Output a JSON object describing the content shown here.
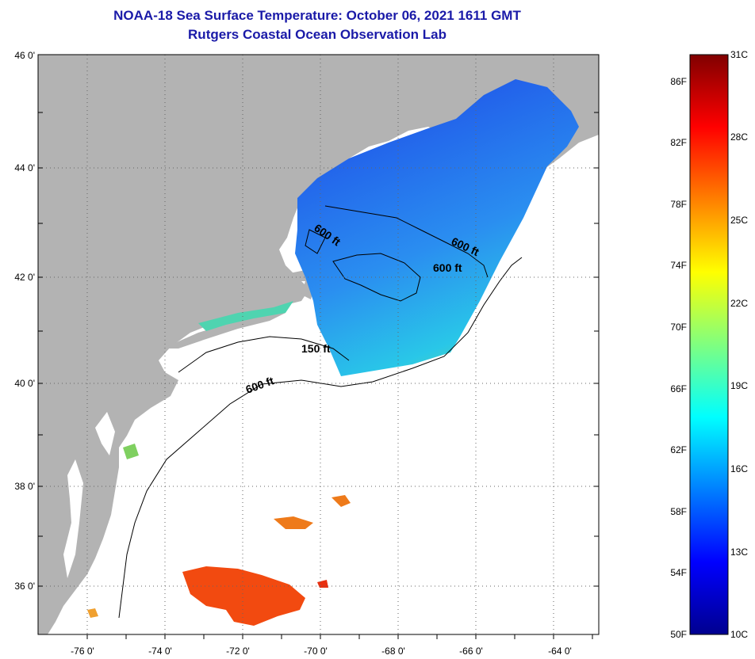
{
  "title": "NOAA-18 Sea Surface Temperature:  October 06, 2021 1611 GMT",
  "subtitle": "Rutgers Coastal Ocean Observation Lab",
  "map": {
    "lat_labels": [
      "46 0'",
      "44 0'",
      "42 0'",
      "40 0'",
      "38 0'",
      "36 0'"
    ],
    "lon_labels": [
      "-76 0'",
      "-74 0'",
      "-72 0'",
      "-70 0'",
      "-68 0'",
      "-66 0'",
      "-64 0'"
    ],
    "contour_labels": [
      "600 ft",
      "600 ft",
      "600 ft",
      "150 ft",
      "600 ft"
    ],
    "colors": {
      "land": "#b3b3b3",
      "ocean_nodata": "#ffffff"
    }
  },
  "colorbar": {
    "celsius_labels": [
      "31C",
      "28C",
      "25C",
      "22C",
      "19C",
      "16C",
      "13C",
      "10C"
    ],
    "fahrenheit_labels": [
      "86F",
      "82F",
      "78F",
      "74F",
      "70F",
      "66F",
      "62F",
      "58F",
      "54F",
      "50F"
    ],
    "range_c": [
      10,
      31
    ]
  }
}
